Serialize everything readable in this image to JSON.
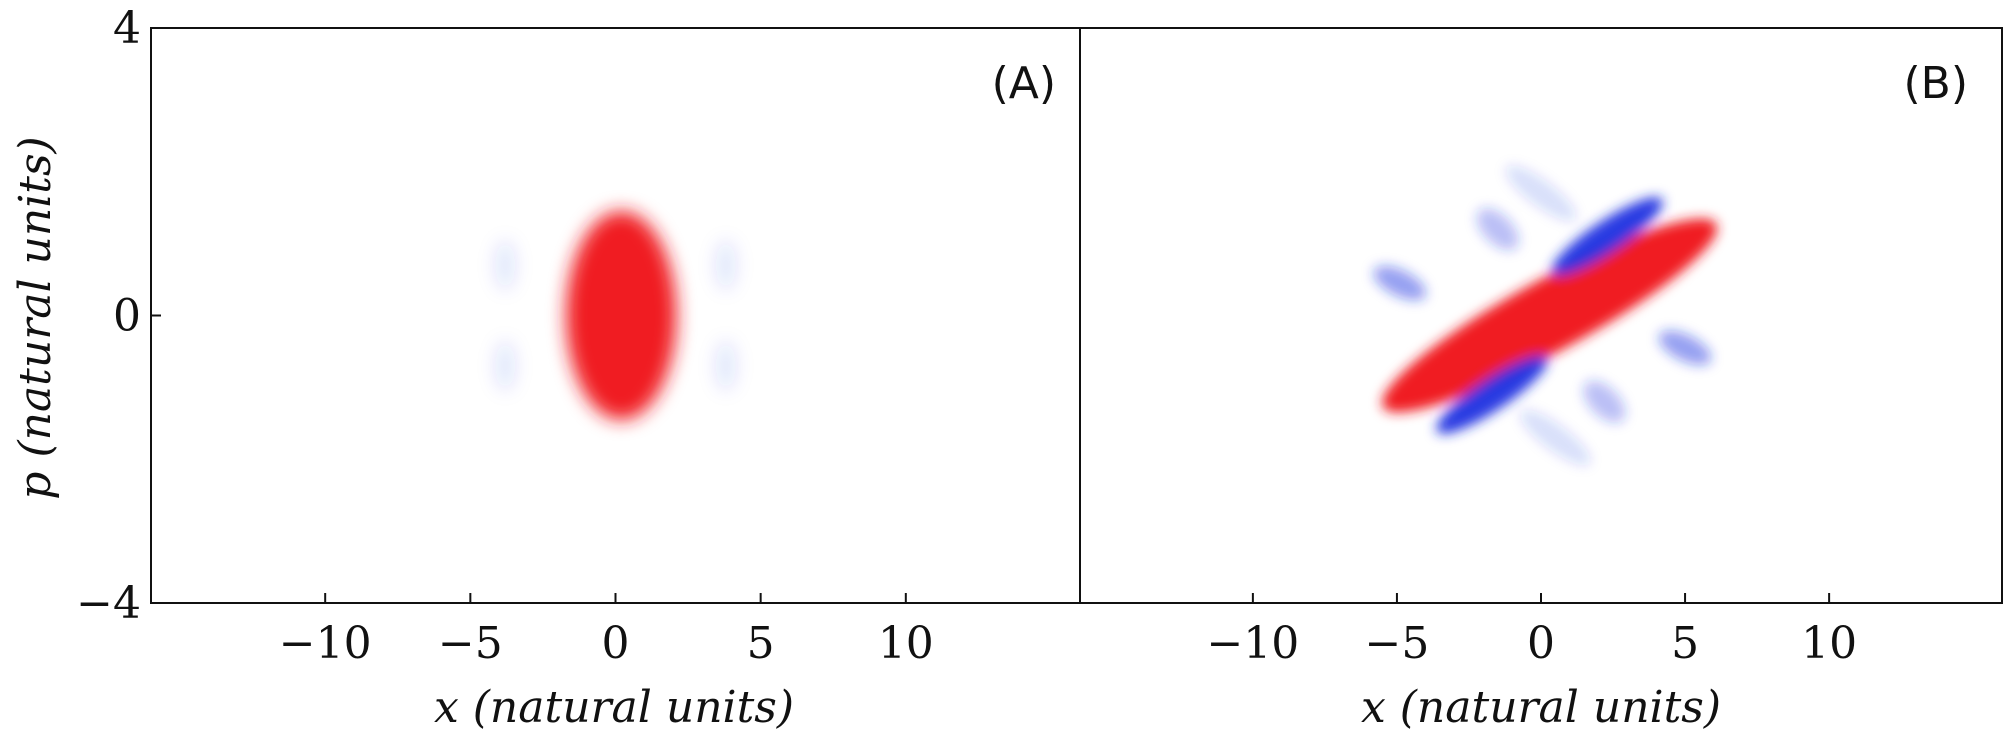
{
  "chart_data": [
    {
      "type": "heatmap",
      "panel_label": "(A)",
      "xlabel": "x (natural units)",
      "ylabel": "p (natural units)",
      "xlim": [
        -16,
        16
      ],
      "ylim": [
        -4,
        4
      ],
      "xticks": [
        "−10",
        "−5",
        "0",
        "5",
        "10"
      ],
      "xtick_values": [
        -10,
        -5,
        0,
        5,
        10
      ],
      "yticks": [
        "4",
        "0",
        "−4"
      ],
      "ytick_values": [
        4,
        0,
        -4
      ],
      "colors": {
        "positive": "#f01c24",
        "negative": "#1a2ee0"
      },
      "features": [
        {
          "sign": "positive",
          "cx": 0.2,
          "cy": 0.0,
          "sx": 1.9,
          "sy": 1.45,
          "tilt": 0,
          "amp": 1.0
        },
        {
          "sign": "negative",
          "cx": -3.8,
          "cy": 0.7,
          "sx": 0.35,
          "sy": 0.35,
          "tilt": 0,
          "amp": 0.12
        },
        {
          "sign": "negative",
          "cx": 3.8,
          "cy": 0.7,
          "sx": 0.35,
          "sy": 0.35,
          "tilt": 0,
          "amp": 0.12
        },
        {
          "sign": "negative",
          "cx": -3.8,
          "cy": -0.7,
          "sx": 0.35,
          "sy": 0.35,
          "tilt": 0,
          "amp": 0.12
        },
        {
          "sign": "negative",
          "cx": 3.8,
          "cy": -0.7,
          "sx": 0.35,
          "sy": 0.35,
          "tilt": 0,
          "amp": 0.12
        }
      ]
    },
    {
      "type": "heatmap",
      "panel_label": "(B)",
      "xlabel": "x (natural units)",
      "ylabel": "",
      "xlim": [
        -16,
        16
      ],
      "ylim": [
        -4,
        4
      ],
      "xticks": [
        "−10",
        "−5",
        "0",
        "5",
        "10"
      ],
      "xtick_values": [
        -10,
        -5,
        0,
        5,
        10
      ],
      "yticks": [],
      "ytick_values": [],
      "colors": {
        "positive": "#f01c24",
        "negative": "#1a2ee0"
      },
      "features": [
        {
          "sign": "positive",
          "cx": 0.3,
          "cy": 0.0,
          "sx": 6.6,
          "sy": 0.5,
          "tilt": 0.22,
          "amp": 1.0
        },
        {
          "sign": "negative",
          "cx": 2.3,
          "cy": 1.1,
          "sx": 2.3,
          "sy": 0.22,
          "tilt": 0.27,
          "amp": 0.95
        },
        {
          "sign": "negative",
          "cx": -1.7,
          "cy": -1.1,
          "sx": 2.3,
          "sy": 0.22,
          "tilt": 0.27,
          "amp": 0.95
        },
        {
          "sign": "negative",
          "cx": -4.9,
          "cy": 0.45,
          "sx": 0.45,
          "sy": 0.4,
          "tilt": 0.8,
          "amp": 0.45
        },
        {
          "sign": "negative",
          "cx": 5.0,
          "cy": -0.45,
          "sx": 0.45,
          "sy": 0.4,
          "tilt": 0.8,
          "amp": 0.45
        },
        {
          "sign": "negative",
          "cx": -1.5,
          "cy": 1.2,
          "sx": 0.9,
          "sy": 0.2,
          "tilt": -0.4,
          "amp": 0.3
        },
        {
          "sign": "negative",
          "cx": 2.2,
          "cy": -1.2,
          "sx": 0.9,
          "sy": 0.2,
          "tilt": -0.4,
          "amp": 0.3
        },
        {
          "sign": "negative",
          "cx": 0.0,
          "cy": 1.7,
          "sx": 1.5,
          "sy": 0.18,
          "tilt": -0.3,
          "amp": 0.15
        },
        {
          "sign": "negative",
          "cx": 0.5,
          "cy": -1.7,
          "sx": 1.5,
          "sy": 0.18,
          "tilt": -0.3,
          "amp": 0.15
        }
      ]
    }
  ]
}
